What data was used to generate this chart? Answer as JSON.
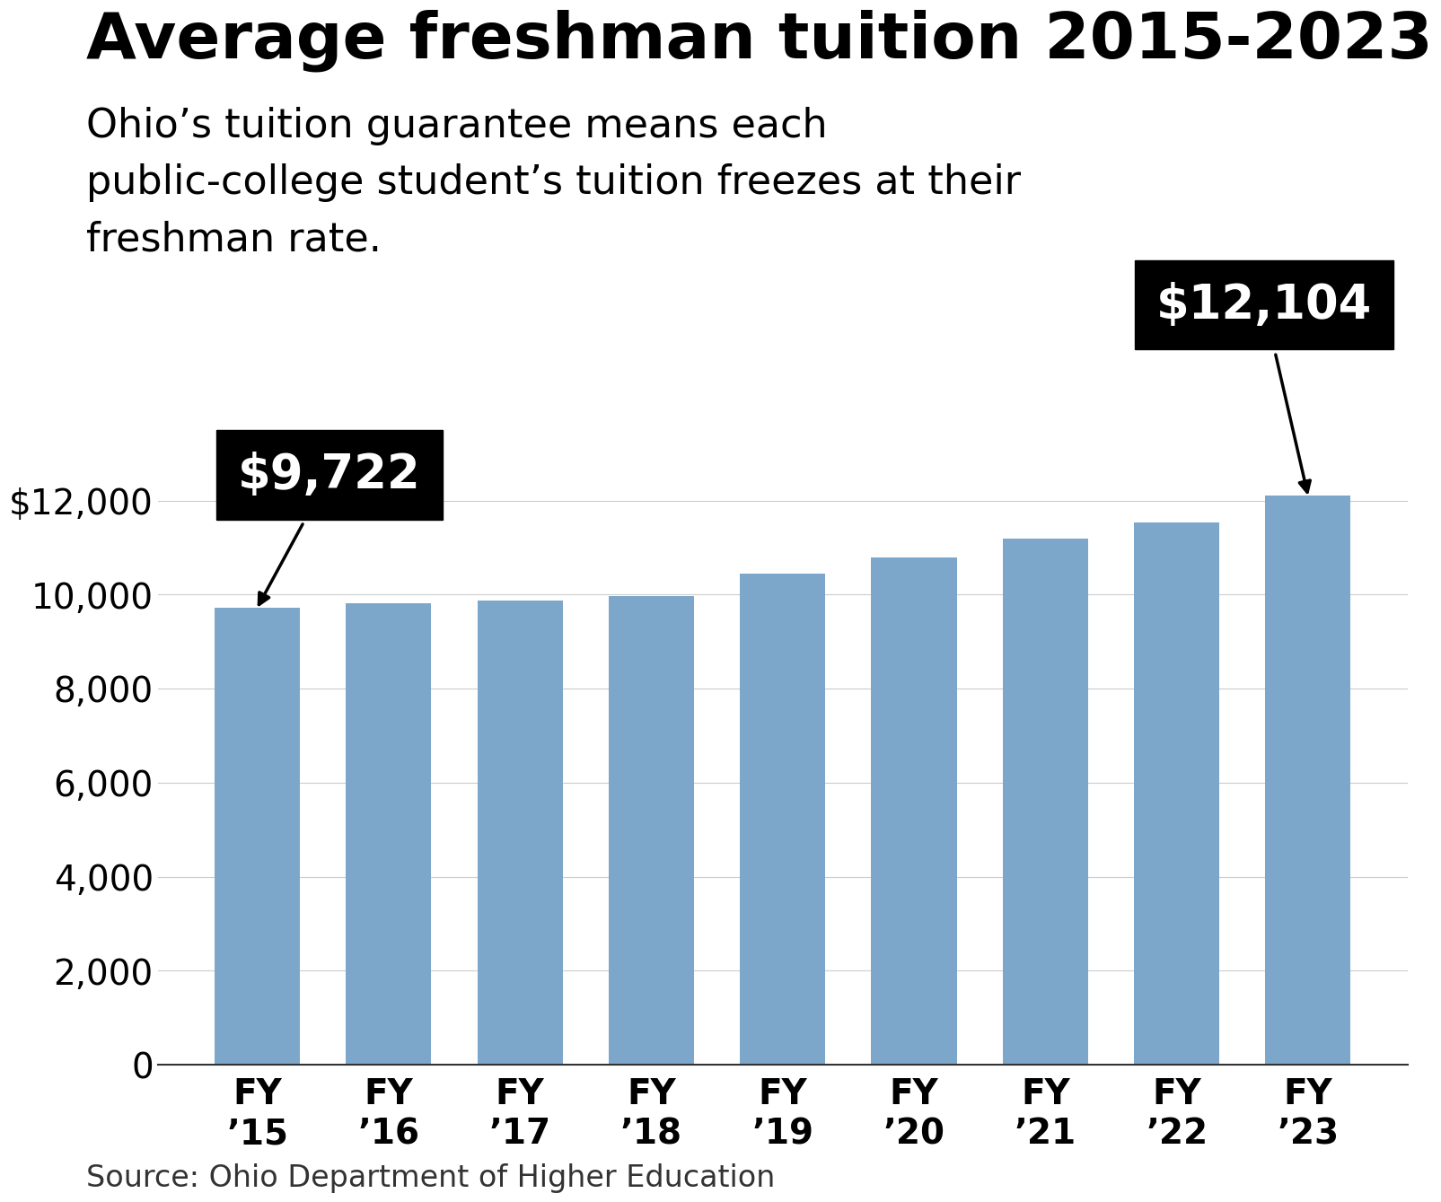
{
  "title": "Average freshman tuition 2015-2023",
  "subtitle": "Ohio’s tuition guarantee means each\npublic-college student’s tuition freezes at their\nfreshman rate.",
  "source": "Source: Ohio Department of Higher Education",
  "categories": [
    "FY\n’15",
    "FY\n’16",
    "FY\n’17",
    "FY\n’18",
    "FY\n’19",
    "FY\n’20",
    "FY\n’21",
    "FY\n’22",
    "FY\n’23"
  ],
  "values": [
    9722,
    9823,
    9882,
    9966,
    10440,
    10790,
    11190,
    11530,
    12104
  ],
  "bar_color": "#7da7ca",
  "background_color": "#ffffff",
  "ylim": [
    0,
    13500
  ],
  "yticks": [
    0,
    2000,
    4000,
    6000,
    8000,
    10000,
    12000
  ],
  "ytick_labels": [
    "0",
    "2,000",
    "4,000",
    "6,000",
    "8,000",
    "10,000",
    "$12,000"
  ],
  "callout1_value": "$9,722",
  "callout1_bar_index": 0,
  "callout2_value": "$12,104",
  "callout2_bar_index": 8,
  "title_fontsize": 52,
  "subtitle_fontsize": 32,
  "tick_fontsize": 28,
  "source_fontsize": 24,
  "callout_fontsize": 38
}
